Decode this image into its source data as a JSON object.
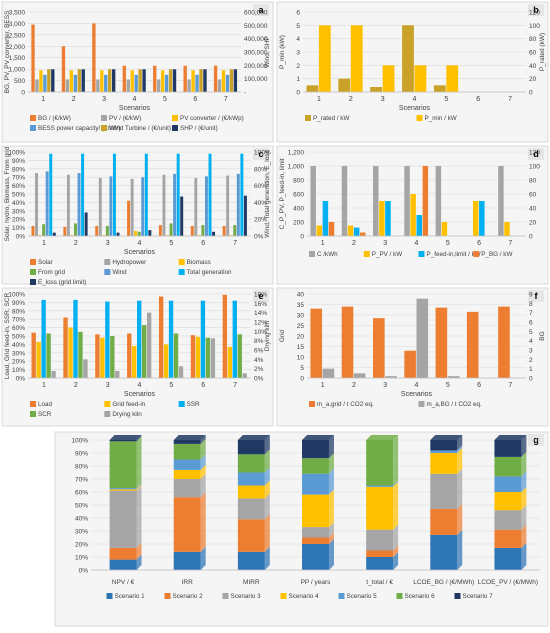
{
  "colors": {
    "orange": "#ED7D31",
    "gray": "#A5A5A5",
    "yellow": "#FFC000",
    "blue": "#5B9BD5",
    "darknavy": "#1F3864",
    "green": "#70AD47",
    "darkorange": "#C55A11",
    "lightblue": "#00B0F0",
    "darkblue": "#2E75B6",
    "navy": "#1B3A6B",
    "gold": "#C9A227",
    "pblue": "#0070C0",
    "panelbg": "#F5F5F5",
    "panelborder": "#D9D9D9",
    "tagbg": "#E7E6E6",
    "grid": "#D9D9D9",
    "text": "#404040",
    "s1": "#2E75B6",
    "s2": "#ED7D31",
    "s3": "#A5A5A5",
    "s4": "#FFC000",
    "s5": "#5B9BD5",
    "s6": "#70AD47",
    "s7": "#1F3864"
  },
  "chart_data": [
    {
      "id": "a",
      "tag": "a",
      "type": "bar",
      "xlabel": "Scenarios",
      "ylabel": "BG, PV, PV converter, BESS",
      "ylabel2": "Wind, SHP",
      "ylim": [
        0,
        3500
      ],
      "yticks": [
        0,
        500,
        1000,
        1500,
        2000,
        2500,
        3000,
        3500
      ],
      "ylim2": [
        0,
        600000
      ],
      "y2ticks": [
        0,
        100000,
        200000,
        300000,
        400000,
        500000,
        600000
      ],
      "y2ticklabels": [
        "-",
        "100,000",
        "200,000",
        "300,000",
        "400,000",
        "500,000",
        "600,000"
      ],
      "categories": [
        "1",
        "2",
        "3",
        "4",
        "5",
        "6",
        "7"
      ],
      "series": [
        {
          "name": "BG / (€/kW)",
          "color": "orange",
          "axis": 1,
          "values": [
            2950,
            2000,
            3000,
            1150,
            1150,
            1150,
            1150
          ]
        },
        {
          "name": "PV / (€/kW)",
          "color": "gray",
          "axis": 1,
          "values": [
            550,
            550,
            550,
            550,
            550,
            550,
            550
          ]
        },
        {
          "name": "PV converter / (€/kWp)",
          "color": "yellow",
          "axis": 1,
          "values": [
            950,
            950,
            950,
            950,
            950,
            950,
            950
          ]
        },
        {
          "name": "BESS power capacity/ (€/kW)",
          "color": "blue",
          "axis": 1,
          "values": [
            750,
            750,
            750,
            750,
            750,
            750,
            750
          ]
        },
        {
          "name": "Wind Turbine / (€/unit)",
          "color": "gold",
          "axis": 2,
          "values": [
            170000,
            170000,
            170000,
            170000,
            170000,
            170000,
            170000
          ]
        },
        {
          "name": "SHP / (€/unit)",
          "color": "darknavy",
          "axis": 2,
          "values": [
            170000,
            170000,
            170000,
            170000,
            170000,
            170000,
            170000
          ]
        }
      ],
      "legend": "bottom"
    },
    {
      "id": "b",
      "tag": "b",
      "type": "bar",
      "xlabel": "Scenarios",
      "ylabel": "P_min (kW)",
      "ylabel2": "P_rated (kW)",
      "ylim": [
        0,
        6
      ],
      "yticks": [
        0,
        1,
        2,
        3,
        4,
        5,
        6
      ],
      "ylim2": [
        0,
        120
      ],
      "y2ticks": [
        0,
        20,
        40,
        60,
        80,
        100,
        120
      ],
      "categories": [
        "1",
        "2",
        "3",
        "4",
        "5",
        "6",
        "7"
      ],
      "series": [
        {
          "name": "P_rated / kW",
          "color": "gold",
          "axis": 2,
          "values": [
            10,
            20,
            7.5,
            100,
            10,
            0,
            0
          ]
        },
        {
          "name": "P_min / kW",
          "color": "yellow",
          "axis": 1,
          "values": [
            5,
            5,
            2,
            2,
            2,
            0,
            0
          ]
        }
      ],
      "legend": "bottom"
    },
    {
      "id": "c",
      "tag": "c",
      "type": "bar",
      "xlabel": "Scenarios",
      "ylabel": "Solar, hydro, Biomass, From grid",
      "ylabel2": "Wind, Total generation, E_loss",
      "ylim": [
        0,
        100
      ],
      "yticks": [
        0,
        10,
        20,
        30,
        40,
        50,
        60,
        70,
        80,
        90,
        100
      ],
      "ylim2": [
        0,
        100
      ],
      "y2ticks": [
        0,
        20,
        40,
        60,
        80,
        100
      ],
      "percent": true,
      "categories": [
        "1",
        "2",
        "3",
        "4",
        "5",
        "6",
        "7"
      ],
      "series": [
        {
          "name": "Solar",
          "color": "orange",
          "axis": 1,
          "values": [
            12,
            11,
            12,
            42,
            13,
            12,
            12
          ]
        },
        {
          "name": "Hydropower",
          "color": "gray",
          "axis": 1,
          "values": [
            75,
            73,
            69,
            68,
            73,
            69,
            72
          ]
        },
        {
          "name": "Biomass",
          "color": "yellow",
          "axis": 1,
          "values": [
            1,
            1,
            1,
            6,
            1,
            1,
            1
          ]
        },
        {
          "name": "From grid",
          "color": "green",
          "axis": 1,
          "values": [
            14,
            15,
            12,
            5,
            15,
            13,
            13
          ]
        },
        {
          "name": "Wind",
          "color": "blue",
          "axis": 1,
          "values": [
            77,
            75,
            71,
            70,
            74,
            71,
            74
          ]
        },
        {
          "name": "Total generation",
          "color": "lightblue",
          "axis": 2,
          "values": [
            98,
            98,
            98,
            98,
            98,
            98,
            98
          ]
        },
        {
          "name": "E_loss (grid limit)",
          "color": "darknavy",
          "axis": 2,
          "values": [
            4,
            28,
            4,
            7,
            47,
            5,
            48
          ]
        }
      ],
      "legend": "bottom"
    },
    {
      "id": "d",
      "tag": "d",
      "type": "bar",
      "xlabel": "",
      "ylabel": "C_P_PV, P_feed-in, limit",
      "ylim": [
        0,
        1200
      ],
      "yticks": [
        0,
        200,
        400,
        600,
        800,
        1000,
        1200
      ],
      "ylim2": [
        0,
        120
      ],
      "y2ticks": [
        0,
        20,
        40,
        60,
        80,
        100,
        120
      ],
      "categories": [
        "1",
        "2",
        "3",
        "4",
        "5",
        "6",
        "7"
      ],
      "series": [
        {
          "name": "C /kWh",
          "color": "gray",
          "axis": 1,
          "values": [
            1000,
            1000,
            1000,
            1000,
            1000,
            0,
            1000
          ]
        },
        {
          "name": "P_PV / kW",
          "color": "yellow",
          "axis": 1,
          "values": [
            150,
            150,
            500,
            600,
            200,
            500,
            200
          ]
        },
        {
          "name": "P_feed-in,limit / kW",
          "color": "lightblue",
          "axis": 1,
          "values": [
            500,
            120,
            500,
            300,
            0,
            500,
            0
          ]
        },
        {
          "name": "P_BG / kW",
          "color": "orange",
          "axis": 1,
          "values": [
            200,
            50,
            0,
            1000,
            0,
            0,
            0
          ]
        }
      ],
      "legend": "bottom"
    },
    {
      "id": "e",
      "tag": "e",
      "type": "bar",
      "xlabel": "Scenarios",
      "ylabel": "Load, Grid feed-in, SSR, SCR",
      "ylabel2": "Drying kiln",
      "ylim": [
        0,
        100
      ],
      "yticks": [
        0,
        10,
        20,
        30,
        40,
        50,
        60,
        70,
        80,
        90,
        100
      ],
      "ylim2": [
        0,
        18
      ],
      "y2ticks": [
        0,
        2,
        4,
        6,
        8,
        10,
        12,
        14,
        16,
        18
      ],
      "percent": true,
      "categories": [
        "1",
        "2",
        "3",
        "4",
        "5",
        "6",
        "7"
      ],
      "series": [
        {
          "name": "Load",
          "color": "orange",
          "axis": 1,
          "values": [
            54,
            72,
            52,
            53,
            97,
            51,
            99
          ]
        },
        {
          "name": "Grid feed-in",
          "color": "yellow",
          "axis": 1,
          "values": [
            43,
            60,
            48,
            38,
            40,
            49,
            37
          ]
        },
        {
          "name": "SSR",
          "color": "lightblue",
          "axis": 1,
          "values": [
            93,
            93,
            91,
            92,
            92,
            92,
            92
          ]
        },
        {
          "name": "SCR",
          "color": "green",
          "axis": 1,
          "values": [
            53,
            55,
            50,
            63,
            53,
            48,
            52
          ]
        },
        {
          "name": "Drying kiln",
          "color": "gray",
          "axis": 2,
          "values": [
            1.5,
            4,
            1.5,
            14,
            2.5,
            8.5,
            1
          ]
        }
      ],
      "legend": "bottom"
    },
    {
      "id": "f",
      "tag": "f",
      "type": "bar",
      "xlabel": "Scenarios",
      "ylabel": "Grid",
      "ylabel2": "BG",
      "ylim": [
        0,
        40
      ],
      "yticks": [
        0,
        5,
        10,
        15,
        20,
        25,
        30,
        35,
        40
      ],
      "ylim2": [
        0,
        9
      ],
      "y2ticks": [
        0,
        1,
        2,
        3,
        4,
        5,
        6,
        7,
        8,
        9
      ],
      "categories": [
        "1",
        "2",
        "3",
        "4",
        "5",
        "6",
        "7"
      ],
      "series": [
        {
          "name": "m_a,grid / t CO2 eq.",
          "color": "orange",
          "axis": 1,
          "values": [
            33,
            34,
            28.5,
            13,
            33.5,
            31.5,
            34
          ]
        },
        {
          "name": "m_a,BG / t CO2 eq.",
          "color": "gray",
          "axis": 2,
          "values": [
            1,
            0.5,
            0.2,
            8.5,
            0.2,
            0,
            0
          ]
        }
      ],
      "legend": "bottom"
    },
    {
      "id": "g",
      "tag": "g",
      "type": "bar",
      "stacked": true,
      "ylim": [
        0,
        100
      ],
      "yticks": [
        0,
        10,
        20,
        30,
        40,
        50,
        60,
        70,
        80,
        90,
        100
      ],
      "percent": true,
      "categories": [
        "NPV / €",
        "IRR",
        "MIRR",
        "PP / years",
        "t_total / €",
        "LCOE_BG / (€/MWh)",
        "LCOE_PV / (€/MWh)"
      ],
      "series": [
        {
          "name": "Scenario 1",
          "color": "s1",
          "values": [
            8,
            14,
            14,
            20,
            10,
            27,
            17
          ]
        },
        {
          "name": "Scenario 2",
          "color": "s2",
          "values": [
            9,
            42,
            25,
            5,
            5,
            20,
            14
          ]
        },
        {
          "name": "Scenario 3",
          "color": "s3",
          "values": [
            44,
            14,
            16,
            8,
            16,
            27,
            15
          ]
        },
        {
          "name": "Scenario 4",
          "color": "s4",
          "values": [
            1,
            7,
            10,
            25,
            33,
            16,
            14
          ]
        },
        {
          "name": "Scenario 5",
          "color": "s5",
          "values": [
            1,
            8,
            10,
            16,
            1,
            2,
            12
          ]
        },
        {
          "name": "Scenario 6",
          "color": "s6",
          "values": [
            36,
            12,
            14,
            12,
            35,
            0,
            15
          ]
        },
        {
          "name": "Scenario 7",
          "color": "s7",
          "values": [
            1,
            3,
            11,
            14,
            0,
            8,
            13
          ]
        }
      ],
      "legend": "bottom"
    }
  ]
}
